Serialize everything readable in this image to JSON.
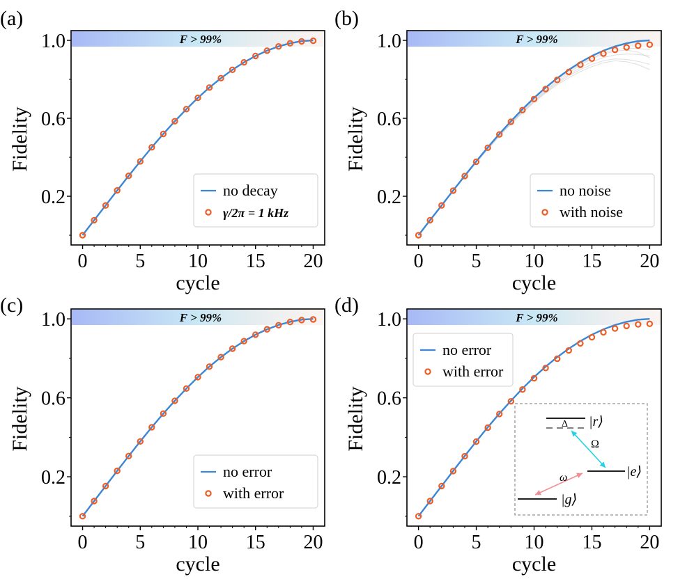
{
  "figure": {
    "banner_label": "F > 99%",
    "banner_colors": [
      "#a8b9f6",
      "#c9e8f5",
      "#f3e5de"
    ],
    "line_color": "#3d86d4",
    "marker_color": "#ec5e28"
  },
  "chart_data": [
    {
      "panel": "(a)",
      "type": "line",
      "xlabel": "cycle",
      "ylabel": "Fidelity",
      "xlim": [
        -1,
        21
      ],
      "ylim": [
        -0.05,
        1.05
      ],
      "xticks": [
        0,
        5,
        10,
        15,
        20
      ],
      "xticklabels": [
        "0",
        "5",
        "10",
        "15",
        "20"
      ],
      "yticks": [
        0.2,
        0.6,
        1.0
      ],
      "yticklabels": [
        "0.2",
        "0.6",
        "1.0"
      ],
      "legend_position": "lower-right",
      "banner": "F > 99%",
      "series": [
        {
          "name": "no decay",
          "kind": "line",
          "x": [
            0,
            1,
            2,
            3,
            4,
            5,
            6,
            7,
            8,
            9,
            10,
            11,
            12,
            13,
            14,
            15,
            16,
            17,
            18,
            19,
            20
          ],
          "y": [
            0.0,
            0.077,
            0.153,
            0.23,
            0.305,
            0.379,
            0.451,
            0.52,
            0.585,
            0.647,
            0.705,
            0.758,
            0.806,
            0.849,
            0.887,
            0.92,
            0.947,
            0.969,
            0.985,
            0.996,
            1.0
          ]
        },
        {
          "name": "γ/2π = 1 kHz",
          "kind": "markers",
          "x": [
            0,
            1,
            2,
            3,
            4,
            5,
            6,
            7,
            8,
            9,
            10,
            11,
            12,
            13,
            14,
            15,
            16,
            17,
            18,
            19,
            20
          ],
          "y": [
            0.0,
            0.077,
            0.153,
            0.23,
            0.305,
            0.379,
            0.451,
            0.52,
            0.585,
            0.647,
            0.705,
            0.758,
            0.806,
            0.849,
            0.887,
            0.92,
            0.947,
            0.969,
            0.985,
            0.995,
            0.998
          ]
        }
      ]
    },
    {
      "panel": "(b)",
      "type": "line",
      "xlabel": "cycle",
      "ylabel": "Fidelity",
      "xlim": [
        -1,
        21
      ],
      "ylim": [
        -0.05,
        1.05
      ],
      "xticks": [
        0,
        5,
        10,
        15,
        20
      ],
      "xticklabels": [
        "0",
        "5",
        "10",
        "15",
        "20"
      ],
      "yticks": [
        0.2,
        0.6,
        1.0
      ],
      "yticklabels": [
        "0.2",
        "0.6",
        "1.0"
      ],
      "legend_position": "lower-right",
      "banner": "F > 99%",
      "noise_traces": [
        [
          0.0,
          0.077,
          0.152,
          0.228,
          0.302,
          0.375,
          0.445,
          0.513,
          0.575,
          0.636,
          0.69,
          0.74,
          0.785,
          0.825,
          0.86,
          0.89,
          0.912,
          0.925,
          0.93,
          0.928,
          0.92
        ],
        [
          0.0,
          0.077,
          0.153,
          0.229,
          0.303,
          0.377,
          0.447,
          0.516,
          0.58,
          0.64,
          0.695,
          0.745,
          0.793,
          0.834,
          0.872,
          0.905,
          0.93,
          0.945,
          0.95,
          0.94,
          0.91
        ],
        [
          0.0,
          0.077,
          0.152,
          0.227,
          0.3,
          0.372,
          0.441,
          0.508,
          0.57,
          0.628,
          0.681,
          0.73,
          0.772,
          0.808,
          0.84,
          0.865,
          0.885,
          0.895,
          0.89,
          0.875,
          0.85
        ],
        [
          0.0,
          0.077,
          0.153,
          0.229,
          0.304,
          0.378,
          0.449,
          0.518,
          0.583,
          0.644,
          0.701,
          0.753,
          0.8,
          0.842,
          0.878,
          0.91,
          0.935,
          0.953,
          0.96,
          0.958,
          0.952
        ],
        [
          0.0,
          0.077,
          0.152,
          0.228,
          0.301,
          0.374,
          0.443,
          0.511,
          0.573,
          0.632,
          0.686,
          0.735,
          0.779,
          0.818,
          0.85,
          0.876,
          0.895,
          0.905,
          0.902,
          0.892,
          0.877
        ]
      ],
      "series": [
        {
          "name": "no noise",
          "kind": "line",
          "x": [
            0,
            1,
            2,
            3,
            4,
            5,
            6,
            7,
            8,
            9,
            10,
            11,
            12,
            13,
            14,
            15,
            16,
            17,
            18,
            19,
            20
          ],
          "y": [
            0.0,
            0.077,
            0.153,
            0.23,
            0.305,
            0.379,
            0.451,
            0.52,
            0.585,
            0.647,
            0.705,
            0.758,
            0.806,
            0.849,
            0.887,
            0.92,
            0.947,
            0.969,
            0.985,
            0.996,
            1.0
          ]
        },
        {
          "name": "with noise",
          "kind": "markers",
          "x": [
            0,
            1,
            2,
            3,
            4,
            5,
            6,
            7,
            8,
            9,
            10,
            11,
            12,
            13,
            14,
            15,
            16,
            17,
            18,
            19,
            20
          ],
          "y": [
            0.0,
            0.077,
            0.153,
            0.229,
            0.304,
            0.377,
            0.449,
            0.517,
            0.582,
            0.642,
            0.699,
            0.75,
            0.797,
            0.838,
            0.875,
            0.906,
            0.932,
            0.951,
            0.964,
            0.973,
            0.978
          ]
        }
      ]
    },
    {
      "panel": "(c)",
      "type": "line",
      "xlabel": "cycle",
      "ylabel": "Fidelity",
      "xlim": [
        -1,
        21
      ],
      "ylim": [
        -0.05,
        1.05
      ],
      "xticks": [
        0,
        5,
        10,
        15,
        20
      ],
      "xticklabels": [
        "0",
        "5",
        "10",
        "15",
        "20"
      ],
      "yticks": [
        0.2,
        0.6,
        1.0
      ],
      "yticklabels": [
        "0.2",
        "0.6",
        "1.0"
      ],
      "legend_position": "lower-right",
      "banner": "F > 99%",
      "series": [
        {
          "name": "no error",
          "kind": "line",
          "x": [
            0,
            1,
            2,
            3,
            4,
            5,
            6,
            7,
            8,
            9,
            10,
            11,
            12,
            13,
            14,
            15,
            16,
            17,
            18,
            19,
            20
          ],
          "y": [
            0.0,
            0.077,
            0.153,
            0.23,
            0.305,
            0.379,
            0.451,
            0.52,
            0.585,
            0.647,
            0.705,
            0.758,
            0.806,
            0.849,
            0.887,
            0.92,
            0.947,
            0.969,
            0.985,
            0.996,
            1.0
          ]
        },
        {
          "name": "with error",
          "kind": "markers",
          "x": [
            0,
            1,
            2,
            3,
            4,
            5,
            6,
            7,
            8,
            9,
            10,
            11,
            12,
            13,
            14,
            15,
            16,
            17,
            18,
            19,
            20
          ],
          "y": [
            0.0,
            0.077,
            0.153,
            0.23,
            0.305,
            0.379,
            0.451,
            0.52,
            0.585,
            0.647,
            0.705,
            0.758,
            0.806,
            0.849,
            0.887,
            0.92,
            0.947,
            0.968,
            0.984,
            0.994,
            0.997
          ]
        }
      ]
    },
    {
      "panel": "(d)",
      "type": "line",
      "xlabel": "cycle",
      "ylabel": "Fidelity",
      "xlim": [
        -1,
        21
      ],
      "ylim": [
        -0.05,
        1.05
      ],
      "xticks": [
        0,
        5,
        10,
        15,
        20
      ],
      "xticklabels": [
        "0",
        "5",
        "10",
        "15",
        "20"
      ],
      "yticks": [
        0.2,
        0.6,
        1.0
      ],
      "yticklabels": [
        "0.2",
        "0.6",
        "1.0"
      ],
      "legend_position": "upper-left",
      "banner": "F > 99%",
      "inset": {
        "levels": [
          "|r⟩",
          "|e⟩",
          "|g⟩"
        ],
        "detuning_label": "Δ",
        "coupling_re": "Ω",
        "coupling_ge": "ω",
        "arrow_re_color": "#22d3e8",
        "arrow_ge_color": "#f08f94"
      },
      "series": [
        {
          "name": "no error",
          "kind": "line",
          "x": [
            0,
            1,
            2,
            3,
            4,
            5,
            6,
            7,
            8,
            9,
            10,
            11,
            12,
            13,
            14,
            15,
            16,
            17,
            18,
            19,
            20
          ],
          "y": [
            0.0,
            0.077,
            0.153,
            0.23,
            0.305,
            0.379,
            0.451,
            0.52,
            0.585,
            0.647,
            0.705,
            0.758,
            0.806,
            0.849,
            0.887,
            0.92,
            0.947,
            0.969,
            0.985,
            0.996,
            1.0
          ]
        },
        {
          "name": "with error",
          "kind": "markers",
          "x": [
            0,
            1,
            2,
            3,
            4,
            5,
            6,
            7,
            8,
            9,
            10,
            11,
            12,
            13,
            14,
            15,
            16,
            17,
            18,
            19,
            20
          ],
          "y": [
            0.0,
            0.077,
            0.153,
            0.229,
            0.304,
            0.378,
            0.449,
            0.518,
            0.582,
            0.642,
            0.699,
            0.751,
            0.798,
            0.84,
            0.876,
            0.907,
            0.932,
            0.951,
            0.964,
            0.972,
            0.975
          ]
        }
      ]
    }
  ]
}
